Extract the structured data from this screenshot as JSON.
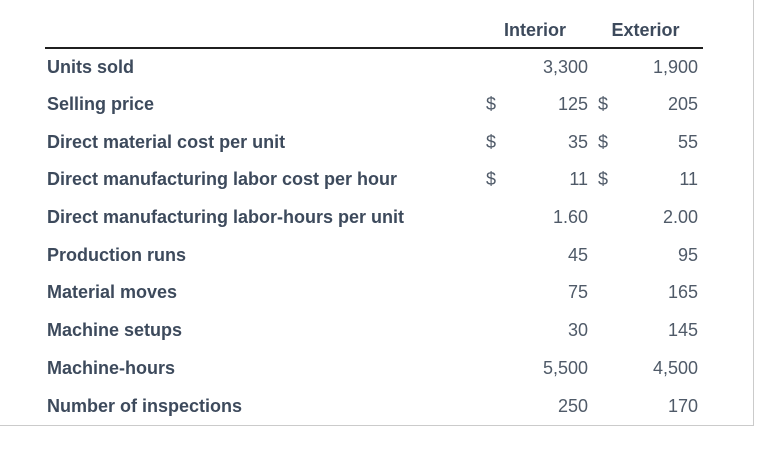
{
  "table": {
    "columns": [
      "Interior",
      "Exterior"
    ],
    "rows": [
      {
        "label": "Units sold",
        "interior_currency": "",
        "interior": "3,300",
        "exterior_currency": "",
        "exterior": "1,900"
      },
      {
        "label": "Selling price",
        "interior_currency": "$",
        "interior": "125",
        "exterior_currency": "$",
        "exterior": "205"
      },
      {
        "label": "Direct material cost per unit",
        "interior_currency": "$",
        "interior": "35",
        "exterior_currency": "$",
        "exterior": "55"
      },
      {
        "label": "Direct manufacturing labor cost per hour",
        "interior_currency": "$",
        "interior": "11",
        "exterior_currency": "$",
        "exterior": "11"
      },
      {
        "label": "Direct manufacturing labor-hours per unit",
        "interior_currency": "",
        "interior": "1.60",
        "exterior_currency": "",
        "exterior": "2.00"
      },
      {
        "label": "Production runs",
        "interior_currency": "",
        "interior": "45",
        "exterior_currency": "",
        "exterior": "95"
      },
      {
        "label": "Material moves",
        "interior_currency": "",
        "interior": "75",
        "exterior_currency": "",
        "exterior": "165"
      },
      {
        "label": "Machine setups",
        "interior_currency": "",
        "interior": "30",
        "exterior_currency": "",
        "exterior": "145"
      },
      {
        "label": "Machine-hours",
        "interior_currency": "",
        "interior": "5,500",
        "exterior_currency": "",
        "exterior": "4,500"
      },
      {
        "label": "Number of inspections",
        "interior_currency": "",
        "interior": "250",
        "exterior_currency": "",
        "exterior": "170"
      }
    ],
    "colors": {
      "label_text": "#3d4a5c",
      "value_text": "#4f5a68",
      "header_rule": "#1f1f1f",
      "card_border": "#cbcbcb"
    }
  }
}
